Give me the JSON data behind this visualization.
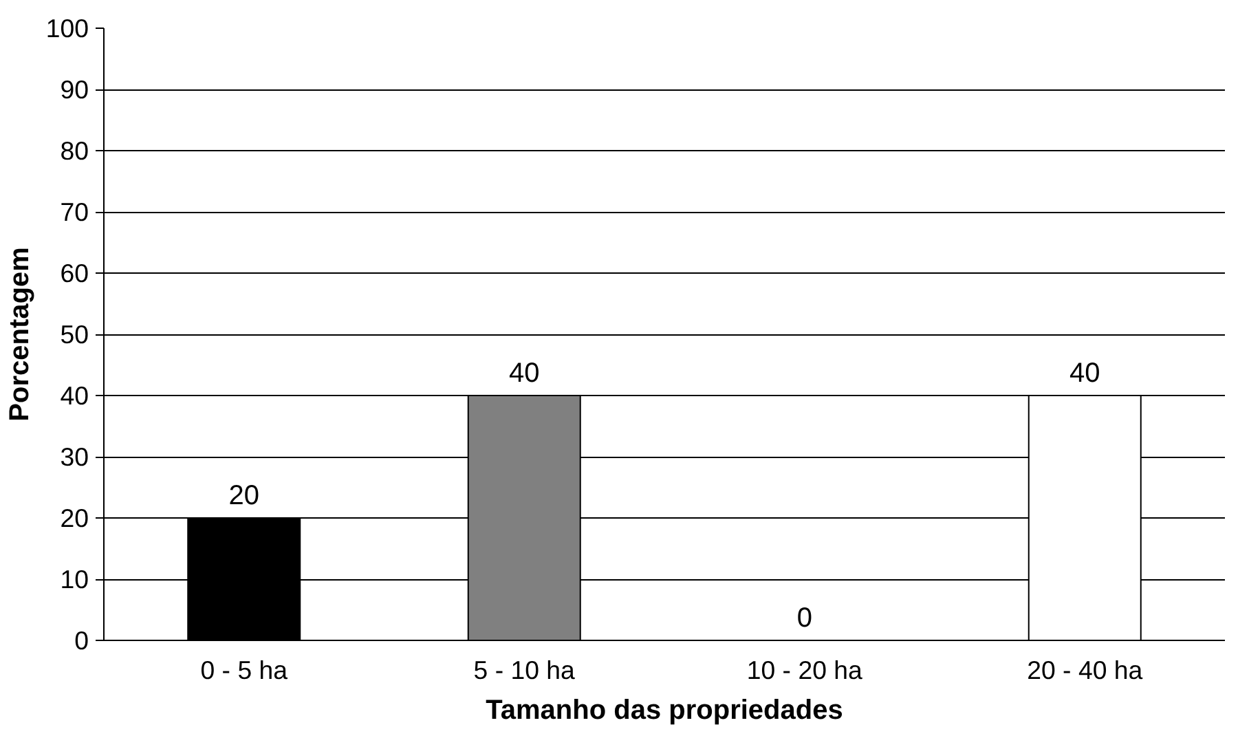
{
  "chart_data": {
    "type": "bar",
    "xlabel": "Tamanho das propriedades",
    "ylabel": "Porcentagem",
    "categories": [
      "0 - 5 ha",
      "5 - 10 ha",
      "10 - 20 ha",
      "20 - 40 ha"
    ],
    "values": [
      20,
      40,
      0,
      40
    ],
    "colors": [
      "#000000",
      "#808080",
      "#ffffff",
      "#ffffff"
    ],
    "ylim": [
      0,
      100
    ],
    "yticks": [
      0,
      10,
      20,
      30,
      40,
      50,
      60,
      70,
      80,
      90,
      100
    ],
    "grid": "y",
    "data_labels": true
  }
}
